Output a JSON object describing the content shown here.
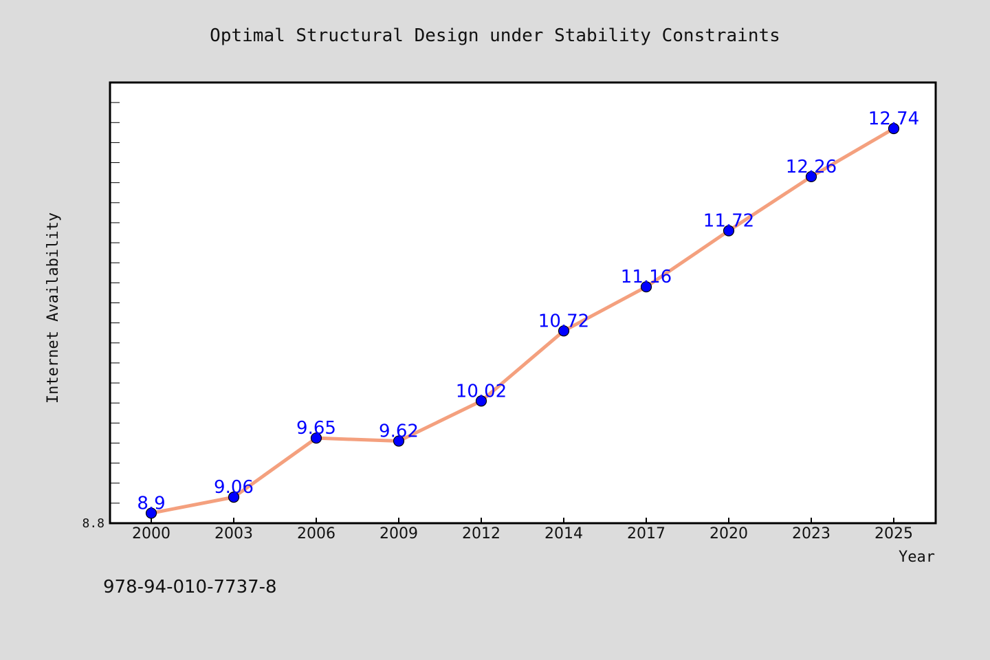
{
  "chart_data": {
    "type": "line",
    "title": "Optimal Structural Design under Stability Constraints",
    "xlabel": "Year",
    "ylabel": "Internet Availability",
    "categories": [
      "2000",
      "2003",
      "2006",
      "2009",
      "2012",
      "2014",
      "2017",
      "2020",
      "2023",
      "2025"
    ],
    "series": [
      {
        "values": [
          8.9,
          9.06,
          9.65,
          9.62,
          10.02,
          10.72,
          11.16,
          11.72,
          12.26,
          12.74
        ]
      }
    ],
    "data_labels": [
      "8.9",
      "9.06",
      "9.65",
      "9.62",
      "10.02",
      "10.72",
      "11.16",
      "11.72",
      "12.26",
      "12.74"
    ],
    "y_tick_labels": [
      "8.8"
    ],
    "ylim": [
      8.8,
      13.2
    ],
    "grid": false,
    "legend": "none",
    "colors": {
      "line": "#f4a07e",
      "marker": "#0000ff",
      "data_label": "#0000ff",
      "plot_background": "#ffffff",
      "figure_background": "#dcdcdc"
    }
  },
  "footer_text": "978-94-010-7737-8"
}
